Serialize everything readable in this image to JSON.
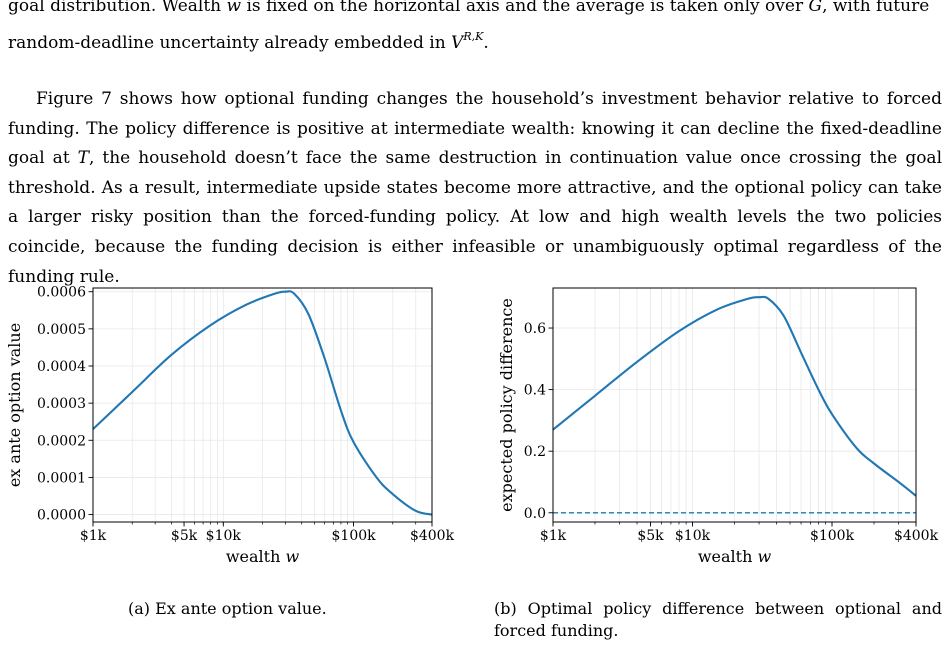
{
  "text": {
    "p1_line1_a": "goal distribution. Wealth ",
    "p1_w": "w",
    "p1_line1_b": " is fixed on the horizontal axis and the average is taken only over ",
    "p1_G": "G",
    "p1_line1_c": ", with future",
    "p1_line2_a": "random-deadline uncertainty already embedded in ",
    "p1_V": "V",
    "p1_sup": "R,K",
    "p1_line2_b": ".",
    "p2_a": "Figure 7 shows how optional funding changes the household’s investment behavior relative to forced funding. The policy difference is positive at intermediate wealth: knowing it can decline the fixed-deadline goal at ",
    "p2_T": "T",
    "p2_b": ", the household doesn’t face the same destruction in continuation value once crossing the goal threshold. As a result, intermediate upside states become more attractive, and the optional policy can take a larger risky position than the forced-funding policy. At low and high wealth levels the two policies coincide, because the funding decision is either infeasible or unambiguously optimal regardless of the funding rule.",
    "caption_a": "(a) Ex ante option value.",
    "caption_b": "(b) Optimal policy difference between optional and forced funding."
  },
  "colors": {
    "line": "#1f77b4",
    "grid": "#e8e8e8",
    "axis": "#000000"
  },
  "chart_data": [
    {
      "type": "line",
      "xscale": "log",
      "xlim": [
        1000,
        400000
      ],
      "ylim": [
        -2e-05,
        0.00061
      ],
      "xticks": [
        1000,
        5000,
        10000,
        100000,
        400000
      ],
      "xtick_labels": [
        "$1k",
        "$5k",
        "$10k",
        "$100k",
        "$400k"
      ],
      "yticks": [
        0.0,
        0.0001,
        0.0002,
        0.0003,
        0.0004,
        0.0005,
        0.0006
      ],
      "ytick_labels": [
        "0.0000",
        "0.0001",
        "0.0002",
        "0.0003",
        "0.0004",
        "0.0005",
        "0.0006"
      ],
      "xlabel_text": "wealth ",
      "xlabel_var": "w",
      "ylabel": "ex ante option value",
      "grid": true,
      "series": [
        {
          "x": [
            1000,
            2000,
            4000,
            8000,
            15000,
            25000,
            30000,
            35000,
            45000,
            60000,
            80000,
            100000,
            150000,
            200000,
            300000,
            400000
          ],
          "y": [
            0.00023,
            0.00033,
            0.00043,
            0.00051,
            0.000565,
            0.000595,
            0.0006,
            0.000595,
            0.00054,
            0.00042,
            0.00028,
            0.000195,
            0.0001,
            5.5e-05,
            1e-05,
            0.0
          ]
        }
      ]
    },
    {
      "type": "line",
      "xscale": "log",
      "xlim": [
        1000,
        400000
      ],
      "ylim": [
        -0.03,
        0.73
      ],
      "xticks": [
        1000,
        5000,
        10000,
        100000,
        400000
      ],
      "xtick_labels": [
        "$1k",
        "$5k",
        "$10k",
        "$100k",
        "$400k"
      ],
      "yticks": [
        0.0,
        0.2,
        0.4,
        0.6
      ],
      "ytick_labels": [
        "0.0",
        "0.2",
        "0.4",
        "0.6"
      ],
      "xlabel_text": "wealth ",
      "xlabel_var": "w",
      "ylabel": "expected policy difference",
      "grid": true,
      "series": [
        {
          "x": [
            1000,
            2000,
            4000,
            8000,
            15000,
            25000,
            30000,
            35000,
            45000,
            60000,
            80000,
            100000,
            150000,
            200000,
            300000,
            400000
          ],
          "y": [
            0.27,
            0.38,
            0.49,
            0.59,
            0.66,
            0.695,
            0.7,
            0.695,
            0.64,
            0.52,
            0.4,
            0.32,
            0.21,
            0.16,
            0.1,
            0.055
          ],
          "style": "solid"
        },
        {
          "x": [
            1000,
            400000
          ],
          "y": [
            0.0,
            0.0
          ],
          "style": "dashed"
        }
      ]
    }
  ]
}
